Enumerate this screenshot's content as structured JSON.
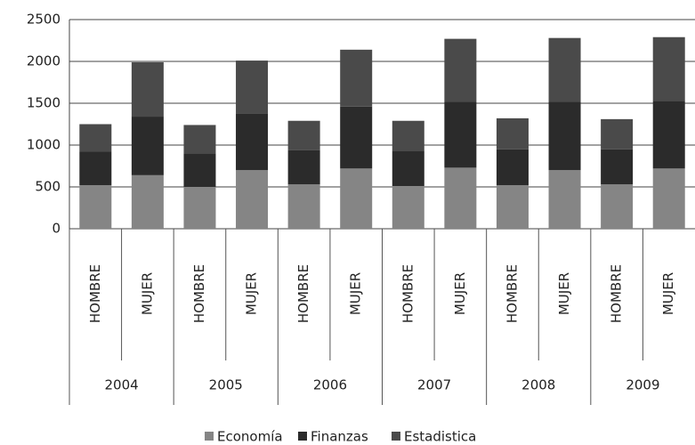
{
  "chart_data": {
    "type": "stacked_bar",
    "categories": [
      "HOMBRE",
      "MUJER",
      "HOMBRE",
      "MUJER",
      "HOMBRE",
      "MUJER",
      "HOMBRE",
      "MUJER",
      "HOMBRE",
      "MUJER",
      "HOMBRE",
      "MUJER"
    ],
    "groups": [
      "2004",
      "2005",
      "2006",
      "2007",
      "2008",
      "2009"
    ],
    "series": [
      {
        "name": "Economía",
        "color": "#858585",
        "values": [
          520,
          640,
          500,
          700,
          530,
          720,
          510,
          730,
          520,
          700,
          530,
          720
        ]
      },
      {
        "name": "Finanzas",
        "color": "#2b2b2b",
        "values": [
          400,
          700,
          400,
          680,
          410,
          740,
          420,
          790,
          430,
          820,
          420,
          810
        ]
      },
      {
        "name": "Estadistica",
        "color": "#4a4a4a",
        "values": [
          330,
          650,
          340,
          630,
          350,
          680,
          360,
          750,
          370,
          760,
          360,
          760
        ]
      }
    ],
    "ylim": [
      0,
      2500
    ],
    "yticks": [
      0,
      500,
      1000,
      1500,
      2000,
      2500
    ],
    "grid": true,
    "legend": "bottom"
  }
}
